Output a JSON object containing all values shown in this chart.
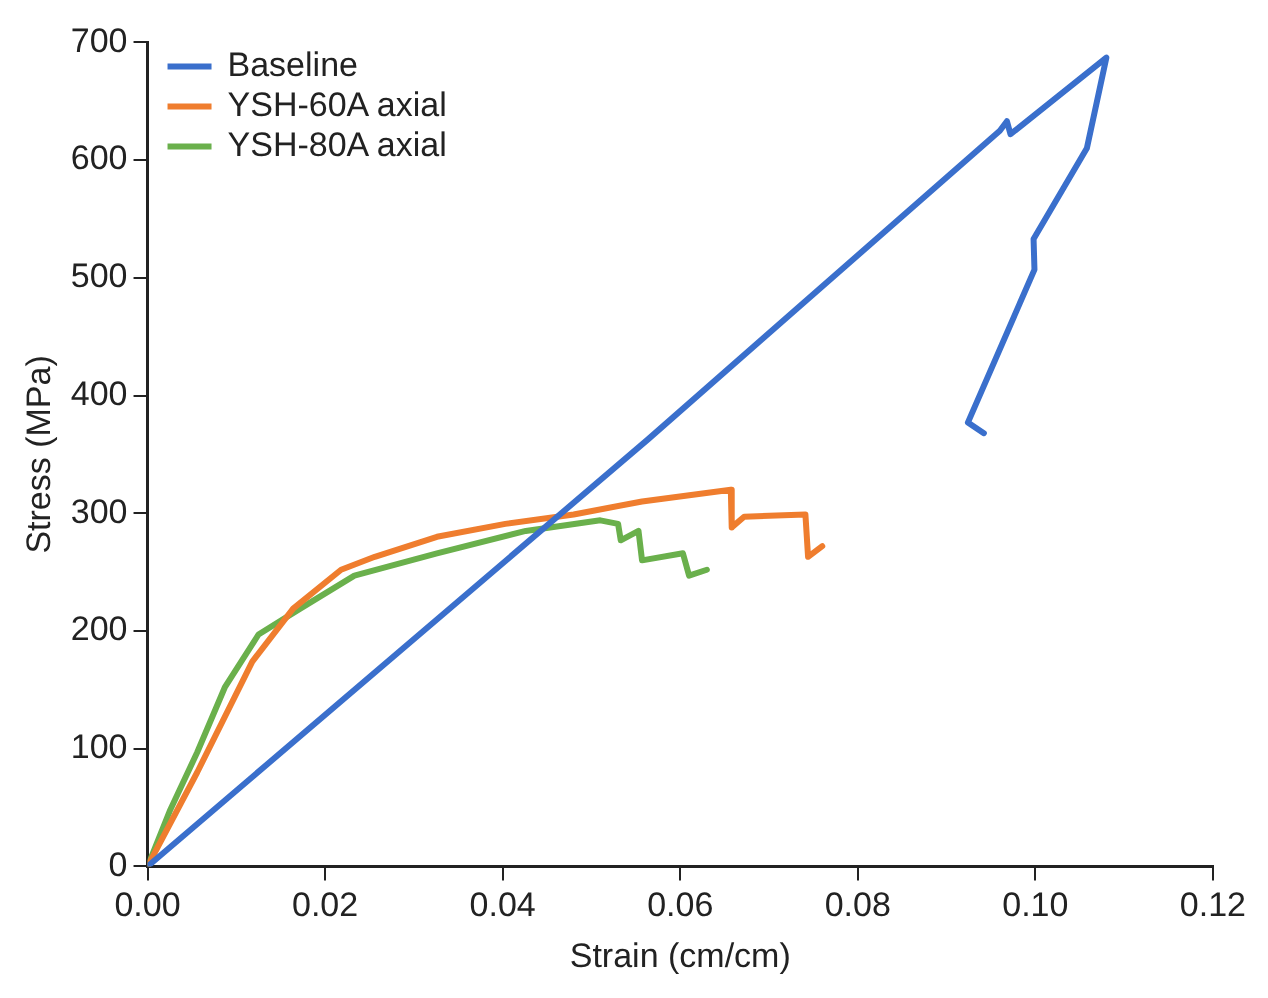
{
  "chart_data": {
    "type": "line",
    "xlabel": "Strain (cm/cm)",
    "ylabel": "Stress (MPa)",
    "xlim": [
      0,
      0.12
    ],
    "ylim": [
      0,
      700
    ],
    "xticks": [
      {
        "value": 0,
        "label": "0.00"
      },
      {
        "value": 0.02,
        "label": "0.02"
      },
      {
        "value": 0.04,
        "label": "0.04"
      },
      {
        "value": 0.06,
        "label": "0.06"
      },
      {
        "value": 0.08,
        "label": "0.08"
      },
      {
        "value": 0.1,
        "label": "0.10"
      },
      {
        "value": 0.12,
        "label": "0.12"
      }
    ],
    "yticks": [
      0,
      100,
      200,
      300,
      400,
      500,
      600,
      700
    ],
    "grid": false,
    "legend": "top left",
    "marker": "none",
    "line_style": "solid",
    "series": [
      {
        "name": "Baseline",
        "color": "#3a6fcc",
        "x": [
          0,
          0.0564,
          0.096,
          0.0968,
          0.0972,
          0.108,
          0.1058,
          0.0998,
          0.0999,
          0.0924,
          0.0942
        ],
        "values": [
          0,
          363,
          625,
          633,
          622,
          687,
          610,
          533,
          507,
          377,
          368
        ]
      },
      {
        "name": "YSH-60A axial",
        "color": "#ef7d2e",
        "x": [
          0,
          0.0056,
          0.0118,
          0.0164,
          0.0218,
          0.0256,
          0.0326,
          0.0403,
          0.048,
          0.0557,
          0.0657,
          0.0658,
          0.0672,
          0.0741,
          0.0744,
          0.076
        ],
        "values": [
          0,
          80,
          174,
          219,
          252,
          263,
          280,
          291,
          299,
          310,
          320,
          288,
          297,
          299,
          263,
          272
        ]
      },
      {
        "name": "YSH-80A axial",
        "color": "#6ab04c",
        "x": [
          0,
          0.0025,
          0.0056,
          0.0087,
          0.0125,
          0.0172,
          0.0233,
          0.0326,
          0.0426,
          0.051,
          0.053,
          0.0533,
          0.0553,
          0.0557,
          0.0603,
          0.061,
          0.063
        ],
        "values": [
          0,
          47,
          97,
          152,
          197,
          219,
          247,
          266,
          285,
          294,
          291,
          277,
          285,
          260,
          266,
          247,
          252
        ]
      }
    ]
  }
}
